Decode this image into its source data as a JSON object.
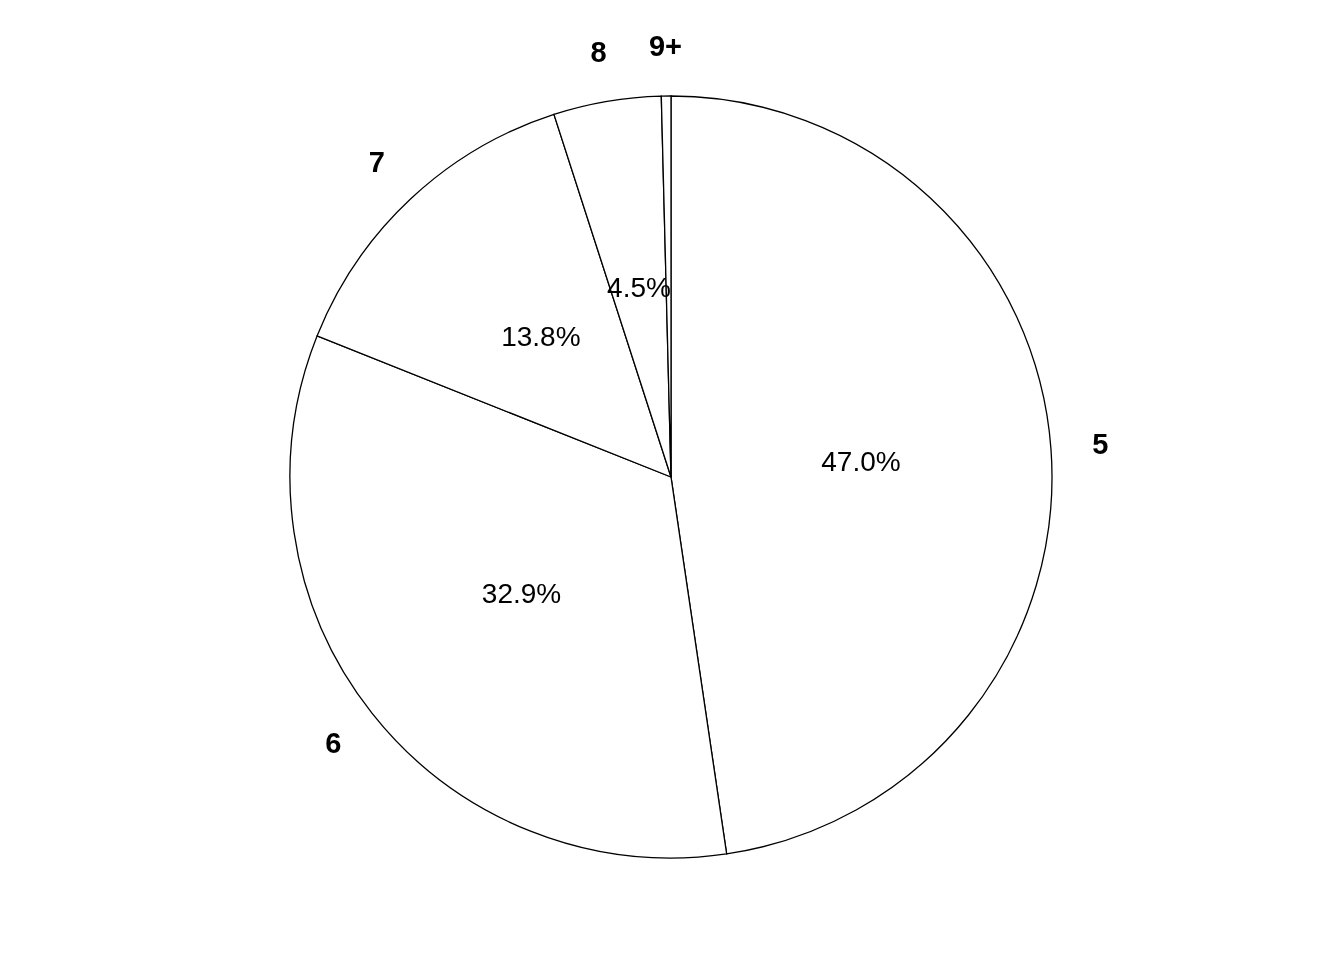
{
  "chart_data": {
    "type": "pie",
    "categories": [
      "5",
      "6",
      "7",
      "8",
      "9+"
    ],
    "values": [
      47.0,
      32.9,
      13.8,
      4.5,
      0.4
    ],
    "colors": [
      "#ffffff",
      "#ffffff",
      "#ffffff",
      "#ffffff",
      "#ffffff"
    ],
    "value_labels": [
      "47.0%",
      "32.9%",
      "13.8%",
      "4.5%",
      null
    ]
  }
}
